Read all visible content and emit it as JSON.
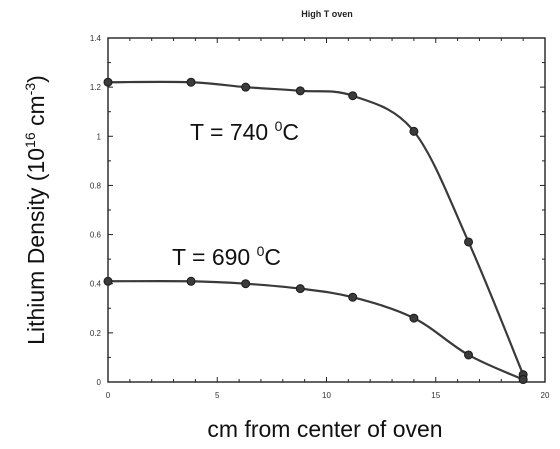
{
  "chart_data": {
    "type": "line",
    "title": "High T oven",
    "xlabel": "cm from center of oven",
    "ylabel": "Lithium Density (10",
    "ylabel_exp1": "16",
    "ylabel_mid": " cm",
    "ylabel_exp2": "-3",
    "ylabel_end": ")",
    "xlim": [
      0,
      20
    ],
    "ylim": [
      0,
      1.4
    ],
    "x_ticks": [
      "0",
      "5",
      "10",
      "15",
      "20"
    ],
    "y_ticks": [
      "0",
      "0.2",
      "0.4",
      "0.6",
      "0.8",
      "1",
      "1.2",
      "1.4"
    ],
    "grid": false,
    "series": [
      {
        "annotation_main": "T = 740 ",
        "annotation_sup": "0",
        "annotation_unit": "C",
        "x": [
          0,
          3.8,
          6.3,
          8.8,
          11.2,
          14,
          16.5,
          19
        ],
        "values": [
          1.22,
          1.22,
          1.2,
          1.185,
          1.165,
          1.02,
          0.57,
          0.03
        ]
      },
      {
        "annotation_main": "T = 690 ",
        "annotation_sup": "0",
        "annotation_unit": "C",
        "x": [
          0,
          3.8,
          6.3,
          8.8,
          11.2,
          14,
          16.5,
          19
        ],
        "values": [
          0.41,
          0.41,
          0.4,
          0.38,
          0.345,
          0.26,
          0.11,
          0.01
        ]
      }
    ]
  }
}
